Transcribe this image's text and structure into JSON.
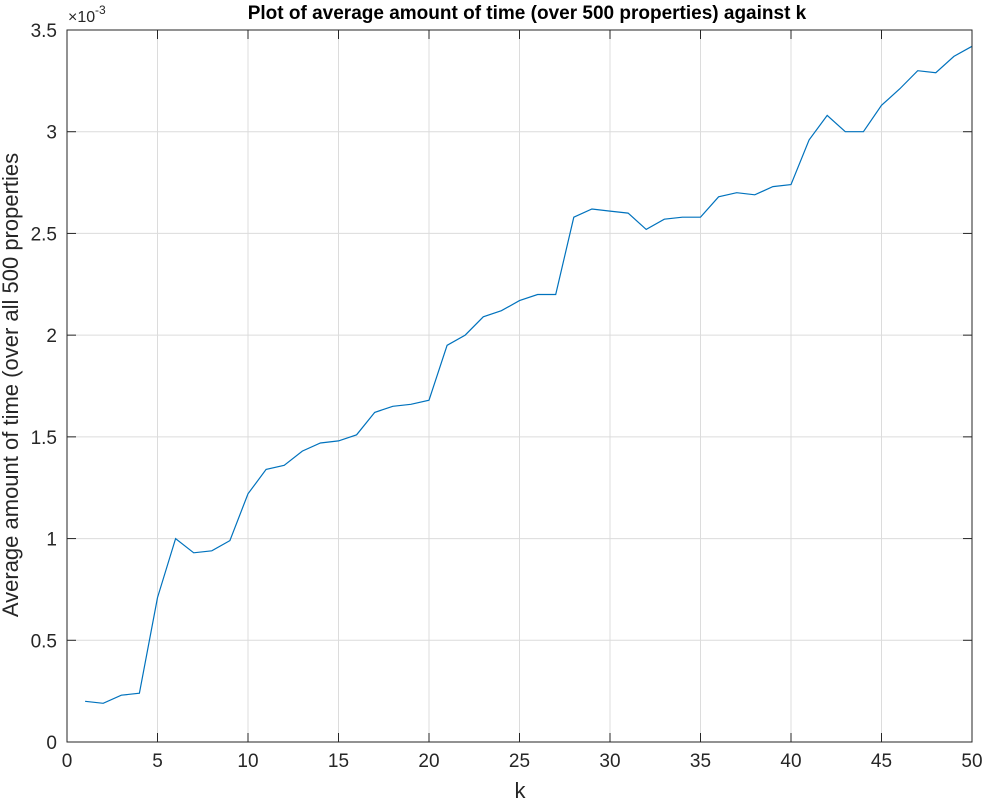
{
  "chart_data": {
    "type": "line",
    "title": "Plot of average amount of time (over 500 properties) against k",
    "xlabel": "k",
    "ylabel": "Average amount of time (over all 500 properties",
    "xlim": [
      0,
      50
    ],
    "ylim": [
      0,
      3.5
    ],
    "xticks": [
      "0",
      "5",
      "10",
      "15",
      "20",
      "25",
      "30",
      "35",
      "40",
      "45",
      "50"
    ],
    "yticks": [
      "0",
      "0.5",
      "1",
      "1.5",
      "2",
      "2.5",
      "3",
      "3.5"
    ],
    "y_exponent": {
      "base": "×10",
      "exponent": "-3"
    },
    "grid": true,
    "series_color": "#0072bd",
    "series": [
      {
        "x": [
          1,
          2,
          3,
          4,
          5,
          6,
          7,
          8,
          9,
          10,
          11,
          12,
          13,
          14,
          15,
          16,
          17,
          18,
          19,
          20,
          21,
          22,
          23,
          24,
          25,
          26,
          27,
          28,
          29,
          30,
          31,
          32,
          33,
          34,
          35,
          36,
          37,
          38,
          39,
          40,
          41,
          42,
          43,
          44,
          45,
          46,
          47,
          48,
          49,
          50
        ],
        "values": [
          0.2,
          0.19,
          0.23,
          0.24,
          0.71,
          1.0,
          0.93,
          0.94,
          0.99,
          1.22,
          1.34,
          1.36,
          1.43,
          1.47,
          1.48,
          1.51,
          1.62,
          1.65,
          1.66,
          1.68,
          1.95,
          2.0,
          2.09,
          2.12,
          2.17,
          2.2,
          2.2,
          2.58,
          2.62,
          2.61,
          2.6,
          2.52,
          2.57,
          2.58,
          2.58,
          2.68,
          2.7,
          2.69,
          2.73,
          2.74,
          2.96,
          3.08,
          3.0,
          3.0,
          3.13,
          3.21,
          3.3,
          3.29,
          3.37,
          3.42
        ]
      }
    ]
  }
}
